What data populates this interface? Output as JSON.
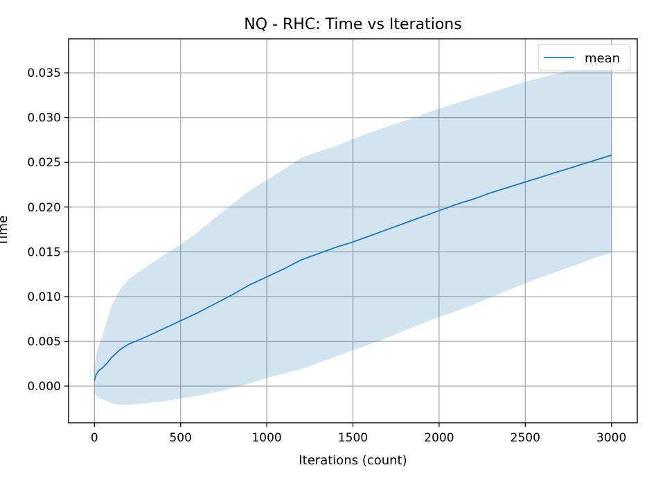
{
  "chart_data": {
    "type": "line",
    "title": "NQ - RHC: Time vs Iterations",
    "xlabel": "Iterations (count)",
    "ylabel": "Time",
    "xlim": [
      -150,
      3150
    ],
    "ylim": [
      -0.0041,
      0.0388
    ],
    "xticks": [
      0,
      500,
      1000,
      1500,
      2000,
      2500,
      3000
    ],
    "xtick_labels": [
      "0",
      "500",
      "1000",
      "1500",
      "2000",
      "2500",
      "3000"
    ],
    "yticks": [
      0.0,
      0.005,
      0.01,
      0.015,
      0.02,
      0.025,
      0.03,
      0.035
    ],
    "ytick_labels": [
      "0.000",
      "0.005",
      "0.010",
      "0.015",
      "0.020",
      "0.025",
      "0.030",
      "0.035"
    ],
    "grid": true,
    "legend": {
      "position": "top-right",
      "entries": [
        "mean"
      ]
    },
    "colors": {
      "line": "#1f77b4",
      "band": "#1f77b4"
    },
    "series": [
      {
        "name": "mean",
        "x": [
          0,
          10,
          25,
          50,
          75,
          100,
          150,
          200,
          300,
          400,
          500,
          600,
          700,
          800,
          900,
          1000,
          1100,
          1200,
          1300,
          1400,
          1500,
          1600,
          1700,
          1800,
          1900,
          2000,
          2100,
          2200,
          2300,
          2400,
          2500,
          2600,
          2700,
          2800,
          2900,
          3000
        ],
        "y": [
          0.0006,
          0.0013,
          0.0017,
          0.0021,
          0.0026,
          0.0032,
          0.0041,
          0.0047,
          0.0055,
          0.0064,
          0.0073,
          0.0082,
          0.0092,
          0.0102,
          0.0113,
          0.0122,
          0.0131,
          0.0141,
          0.0148,
          0.0155,
          0.0161,
          0.0168,
          0.0175,
          0.0182,
          0.0189,
          0.0196,
          0.0203,
          0.0209,
          0.0216,
          0.0222,
          0.0228,
          0.0234,
          0.024,
          0.0246,
          0.0252,
          0.0258
        ]
      }
    ],
    "band": {
      "x": [
        0,
        10,
        25,
        50,
        75,
        100,
        150,
        200,
        300,
        400,
        500,
        600,
        700,
        800,
        900,
        1000,
        1100,
        1200,
        1300,
        1400,
        1500,
        1600,
        1700,
        1800,
        1900,
        2000,
        2100,
        2200,
        2300,
        2400,
        2500,
        2600,
        2700,
        2800,
        2900,
        3000
      ],
      "upper": [
        0.0022,
        0.0035,
        0.0045,
        0.0058,
        0.0075,
        0.009,
        0.0108,
        0.012,
        0.0133,
        0.0146,
        0.0158,
        0.0172,
        0.0188,
        0.0203,
        0.0218,
        0.023,
        0.0242,
        0.0255,
        0.0262,
        0.0268,
        0.0276,
        0.0283,
        0.029,
        0.0296,
        0.0303,
        0.031,
        0.0316,
        0.0322,
        0.0328,
        0.0334,
        0.034,
        0.0345,
        0.035,
        0.0354,
        0.0356,
        0.0358
      ],
      "lower": [
        -0.0008,
        -0.0011,
        -0.0013,
        -0.0015,
        -0.0017,
        -0.0019,
        -0.0021,
        -0.0021,
        -0.0019,
        -0.0017,
        -0.0014,
        -0.0011,
        -0.0007,
        -0.0002,
        0.0003,
        0.0009,
        0.0014,
        0.0019,
        0.0026,
        0.0033,
        0.004,
        0.0047,
        0.0054,
        0.0062,
        0.007,
        0.0077,
        0.0084,
        0.0091,
        0.0099,
        0.0107,
        0.0115,
        0.0122,
        0.0129,
        0.0136,
        0.0143,
        0.0149
      ]
    }
  }
}
